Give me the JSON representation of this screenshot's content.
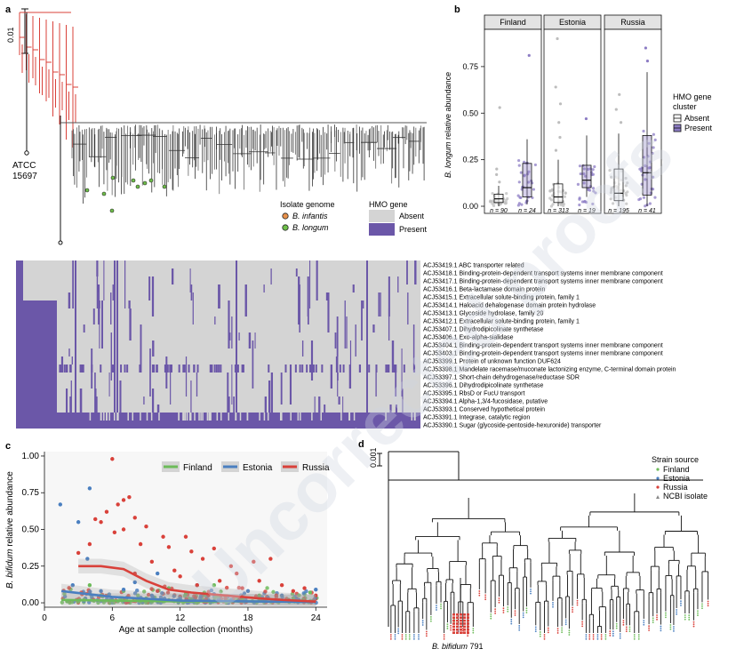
{
  "watermark": "Uncorrected proofs",
  "panel_a": {
    "label": "a",
    "scale_label": "0.01",
    "reference_strain": [
      "ATCC",
      "15697"
    ],
    "legend_isolate_title": "Isolate genome",
    "legend_isolates": [
      {
        "name": "B. infantis",
        "color": "#e8914a"
      },
      {
        "name": "B. longum",
        "color": "#6fc04a"
      }
    ],
    "legend_hmo_title": "HMO gene",
    "legend_hmo": [
      {
        "name": "Absent",
        "color": "#d4d4d4"
      },
      {
        "name": "Present",
        "color": "#6b57a8"
      }
    ],
    "genes": [
      "ACJ53419.1 ABC transporter related",
      "ACJ53418.1 Binding-protein-dependent transport systems inner membrane component",
      "ACJ53417.1 Binding-protein-dependent transport systems inner membrane component",
      "ACJ53416.1 Beta-lactamase domain protein",
      "ACJ53415.1 Extracellular solute-binding protein, family 1",
      "ACJ53414.1 Haloacid dehalogenase domain protein hydrolase",
      "ACJ53413.1 Glycoside hydrolase, family 20",
      "ACJ53412.1 Extracellular solute-binding protein, family 1",
      "ACJ53407.1 Dihydrodipicolinate synthetase",
      "ACJ53406.1 Exo-alpha-sialidase",
      "ACJ53404.1 Binding-protein-dependent transport systems inner membrane component",
      "ACJ53403.1 Binding-protein-dependent transport systems inner membrane component",
      "ACJ53399.1 Protein of unknown function DUF624",
      "ACJ53398.1 Mandelate racemase/muconate lactonizing enzyme, C-terminal domain protein",
      "ACJ53397.1 Short-chain dehydrogenase/reductase SDR",
      "ACJ53396.1 Dihydrodipicolinate synthetase",
      "ACJ53395.1 RbsD or FucU transport",
      "ACJ53394.1 Alpha-1,3/4-fucosidase, putative",
      "ACJ53393.1 Conserved hypothetical protein",
      "ACJ53391.1 Integrase, catalytic region",
      "ACJ53390.1 Sugar (glycoside-pentoside-hexuronide) transporter"
    ]
  },
  "panel_b": {
    "label": "b",
    "legend_title": [
      "HMO gene",
      "cluster"
    ],
    "legend": [
      {
        "name": "Absent",
        "color": "#ffffff"
      },
      {
        "name": "Present",
        "color": "#8c7cc4"
      }
    ],
    "chart_data": {
      "type": "box",
      "ylabel_italic": "B. longum",
      "ylabel_rest": " relative abundance",
      "ylim": [
        0,
        0.95
      ],
      "yticks": [
        0,
        0.25,
        0.5,
        0.75
      ],
      "ytick_labels": [
        "0.00",
        "0.25",
        "0.50",
        "0.75"
      ],
      "facets": [
        {
          "name": "Finland",
          "groups": [
            {
              "cluster": "Absent",
              "n_label": "n = 90",
              "min": 0,
              "q1": 0.02,
              "median": 0.04,
              "q3": 0.065,
              "max": 0.11,
              "outliers": [
                0.13,
                0.17,
                0.2,
                0.53
              ]
            },
            {
              "cluster": "Present",
              "n_label": "n = 24",
              "min": 0.01,
              "q1": 0.05,
              "median": 0.1,
              "q3": 0.23,
              "max": 0.36,
              "outliers": [
                0.81
              ]
            }
          ]
        },
        {
          "name": "Estonia",
          "groups": [
            {
              "cluster": "Absent",
              "n_label": "n = 313",
              "min": 0,
              "q1": 0.02,
              "median": 0.05,
              "q3": 0.12,
              "max": 0.25,
              "outliers": [
                0.3,
                0.37,
                0.45,
                0.55,
                0.64,
                0.9
              ]
            },
            {
              "cluster": "Present",
              "n_label": "n = 19",
              "min": 0.05,
              "q1": 0.1,
              "median": 0.14,
              "q3": 0.22,
              "max": 0.38,
              "outliers": [
                0.47
              ]
            }
          ]
        },
        {
          "name": "Russia",
          "groups": [
            {
              "cluster": "Absent",
              "n_label": "n = 195",
              "min": 0,
              "q1": 0.03,
              "median": 0.07,
              "q3": 0.2,
              "max": 0.39,
              "outliers": [
                0.45,
                0.52,
                0.6
              ]
            },
            {
              "cluster": "Present",
              "n_label": "n = 41",
              "min": 0,
              "q1": 0.06,
              "median": 0.18,
              "q3": 0.38,
              "max": 0.72,
              "outliers": [
                0.78,
                0.85
              ]
            }
          ]
        }
      ]
    }
  },
  "panel_c": {
    "label": "c",
    "chart_data": {
      "type": "scatter",
      "xlabel": "Age at sample collection (months)",
      "ylabel_italic": "B. bifidum",
      "ylabel_rest": " relative abundance",
      "xlim": [
        0,
        25
      ],
      "ylim": [
        -0.03,
        1.03
      ],
      "xticks": [
        0,
        6,
        12,
        18,
        24
      ],
      "xtick_labels": [
        "0",
        "6",
        "12",
        "18",
        "24"
      ],
      "yticks": [
        0,
        0.25,
        0.5,
        0.75,
        1
      ],
      "ytick_labels": [
        "0.00",
        "0.25",
        "0.50",
        "0.75",
        "1.00"
      ],
      "series": [
        {
          "name": "Finland",
          "color": "#6dbb5a",
          "trend": [
            [
              1.5,
              0.02
            ],
            [
              6,
              0.015
            ],
            [
              12,
              0.01
            ],
            [
              18,
              0.01
            ],
            [
              24,
              0.005
            ]
          ],
          "points": [
            [
              2,
              0.01
            ],
            [
              3.5,
              0.02
            ],
            [
              5,
              0.05
            ],
            [
              6.5,
              0.01
            ],
            [
              7,
              0.08
            ],
            [
              9,
              0.03
            ],
            [
              10.5,
              0.01
            ],
            [
              12.5,
              0.06
            ],
            [
              13,
              0.02
            ],
            [
              15,
              0.12
            ],
            [
              16,
              0.04
            ],
            [
              17.5,
              0.02
            ],
            [
              19,
              0.05
            ],
            [
              20.5,
              0.01
            ],
            [
              22,
              0.03
            ],
            [
              23.5,
              0.07
            ],
            [
              11,
              0.1
            ],
            [
              4,
              0.12
            ]
          ]
        },
        {
          "name": "Estonia",
          "color": "#4a7fc0",
          "trend": [
            [
              1.5,
              0.08
            ],
            [
              6,
              0.04
            ],
            [
              12,
              0.015
            ],
            [
              18,
              0.01
            ],
            [
              24,
              0.005
            ]
          ],
          "points": [
            [
              1.4,
              0.67
            ],
            [
              4,
              0.78
            ],
            [
              3,
              0.55
            ],
            [
              2.5,
              0.12
            ],
            [
              3.8,
              0.3
            ],
            [
              5,
              0.08
            ],
            [
              6,
              0.02
            ],
            [
              7,
              0.09
            ],
            [
              8,
              0.14
            ],
            [
              9.5,
              0.05
            ],
            [
              10,
              0.2
            ],
            [
              12,
              0.03
            ],
            [
              13.5,
              0.12
            ],
            [
              15,
              0.06
            ],
            [
              16.5,
              0.02
            ],
            [
              18,
              0.08
            ],
            [
              19.5,
              0.01
            ],
            [
              21,
              0.05
            ],
            [
              22.5,
              0.02
            ],
            [
              24,
              0.09
            ]
          ]
        },
        {
          "name": "Russia",
          "color": "#d9413a",
          "trend": [
            [
              3,
              0.25
            ],
            [
              5,
              0.25
            ],
            [
              7,
              0.23
            ],
            [
              9,
              0.15
            ],
            [
              11,
              0.09
            ],
            [
              13,
              0.07
            ],
            [
              16,
              0.05
            ],
            [
              19,
              0.03
            ],
            [
              21,
              0.02
            ],
            [
              24,
              0.008
            ]
          ],
          "points": [
            [
              6,
              0.98
            ],
            [
              7.5,
              0.72
            ],
            [
              7,
              0.7
            ],
            [
              6.5,
              0.67
            ],
            [
              5.5,
              0.62
            ],
            [
              4.5,
              0.57
            ],
            [
              5,
              0.55
            ],
            [
              8,
              0.58
            ],
            [
              9,
              0.52
            ],
            [
              7,
              0.5
            ],
            [
              6.2,
              0.48
            ],
            [
              10.5,
              0.45
            ],
            [
              8.5,
              0.4
            ],
            [
              11,
              0.38
            ],
            [
              12.5,
              0.45
            ],
            [
              13,
              0.35
            ],
            [
              14,
              0.3
            ],
            [
              15,
              0.37
            ],
            [
              16.5,
              0.25
            ],
            [
              17,
              0.2
            ],
            [
              18.5,
              0.28
            ],
            [
              19,
              0.15
            ],
            [
              20,
              0.3
            ],
            [
              21,
              0.12
            ],
            [
              22,
              0.08
            ],
            [
              23,
              0.1
            ],
            [
              24,
              0.05
            ],
            [
              3,
              0.34
            ],
            [
              4,
              0.4
            ],
            [
              9.5,
              0.28
            ],
            [
              11.5,
              0.22
            ],
            [
              12,
              0.18
            ],
            [
              13.5,
              0.12
            ],
            [
              15.5,
              0.15
            ],
            [
              17.5,
              0.1
            ],
            [
              20.5,
              0.05
            ],
            [
              10,
              0.08
            ],
            [
              8,
              0.2
            ],
            [
              14.5,
              0.05
            ],
            [
              16,
              0.03
            ]
          ]
        }
      ]
    }
  },
  "panel_d": {
    "label": "d",
    "scale_label": "0.001",
    "highlight_label_italic": "B. bifidum",
    "highlight_label_rest": " 791",
    "legend_title": "Strain source",
    "legend": [
      {
        "name": "Finland",
        "color": "#6dbb5a"
      },
      {
        "name": "Estonia",
        "color": "#4a7fc0"
      },
      {
        "name": "Russia",
        "color": "#d9413a"
      },
      {
        "name": "NCBI isolate",
        "color": "#888888"
      }
    ]
  }
}
